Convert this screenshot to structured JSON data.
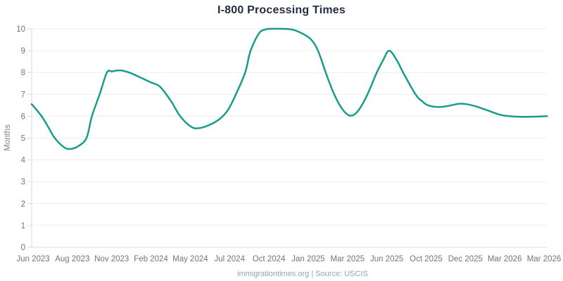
{
  "chart_data": {
    "type": "line",
    "title": "I-800 Processing Times",
    "xlabel": "",
    "ylabel": "Months",
    "ylim": [
      0,
      10
    ],
    "yticks": [
      0,
      1,
      2,
      3,
      4,
      5,
      6,
      7,
      8,
      9,
      10
    ],
    "grid": true,
    "legend": "none",
    "x_tick_labels": [
      "Jun 2023",
      "Aug 2023",
      "Nov 2023",
      "Feb 2024",
      "May 2024",
      "Jul 2024",
      "Oct 2024",
      "Jan 2025",
      "Mar 2025",
      "Jun 2025",
      "Oct 2025",
      "Dec 2025",
      "Mar 2026",
      "Mar 2026"
    ],
    "values_at_ticks": [
      6.5,
      4.5,
      8.05,
      7.5,
      5.5,
      6.45,
      10,
      9.55,
      6,
      9,
      6.5,
      6.55,
      6,
      6
    ],
    "series": [
      {
        "name": "I-800 Processing Times (months)",
        "color": "#1a9c8d",
        "points_month_value": [
          [
            -0.1,
            6.55
          ],
          [
            0.0,
            6.48
          ],
          [
            0.55,
            6.0
          ],
          [
            1.0,
            5.48
          ],
          [
            1.4,
            5.0
          ],
          [
            2.0,
            4.58
          ],
          [
            2.4,
            4.5
          ],
          [
            2.9,
            4.62
          ],
          [
            3.45,
            5.0
          ],
          [
            3.8,
            6.0
          ],
          [
            4.3,
            7.0
          ],
          [
            4.77,
            8.0
          ],
          [
            5.1,
            8.05
          ],
          [
            5.6,
            8.1
          ],
          [
            6.2,
            8.0
          ],
          [
            7.0,
            7.75
          ],
          [
            7.6,
            7.55
          ],
          [
            8.2,
            7.35
          ],
          [
            8.9,
            6.7
          ],
          [
            9.5,
            6.0
          ],
          [
            10.2,
            5.52
          ],
          [
            10.7,
            5.45
          ],
          [
            11.4,
            5.6
          ],
          [
            12.1,
            5.9
          ],
          [
            12.6,
            6.3
          ],
          [
            13.1,
            7.0
          ],
          [
            13.7,
            8.0
          ],
          [
            14.05,
            9.0
          ],
          [
            14.6,
            9.8
          ],
          [
            15.0,
            9.97
          ],
          [
            15.35,
            10.0
          ],
          [
            16.0,
            10.0
          ],
          [
            16.6,
            9.98
          ],
          [
            17.1,
            9.88
          ],
          [
            17.9,
            9.55
          ],
          [
            18.4,
            9.0
          ],
          [
            18.9,
            8.0
          ],
          [
            19.45,
            7.0
          ],
          [
            20.0,
            6.3
          ],
          [
            20.5,
            6.02
          ],
          [
            21.0,
            6.25
          ],
          [
            21.6,
            7.0
          ],
          [
            22.2,
            8.0
          ],
          [
            22.6,
            8.55
          ],
          [
            23.0,
            9.0
          ],
          [
            23.5,
            8.55
          ],
          [
            23.9,
            8.0
          ],
          [
            24.7,
            7.0
          ],
          [
            25.1,
            6.7
          ],
          [
            25.5,
            6.5
          ],
          [
            26.2,
            6.42
          ],
          [
            26.8,
            6.47
          ],
          [
            27.5,
            6.57
          ],
          [
            28.0,
            6.55
          ],
          [
            28.6,
            6.45
          ],
          [
            29.3,
            6.28
          ],
          [
            30.0,
            6.1
          ],
          [
            30.5,
            6.02
          ],
          [
            31.5,
            5.97
          ],
          [
            32.5,
            5.98
          ],
          [
            33.2,
            6.0
          ]
        ]
      }
    ],
    "colors": {
      "gridline": "#eceef3",
      "axis_line": "#d7dae0",
      "tick_label": "#70757d",
      "title": "#242e42"
    }
  },
  "footer": {
    "text": "immigrationtimes.org | Source: USCIS"
  }
}
